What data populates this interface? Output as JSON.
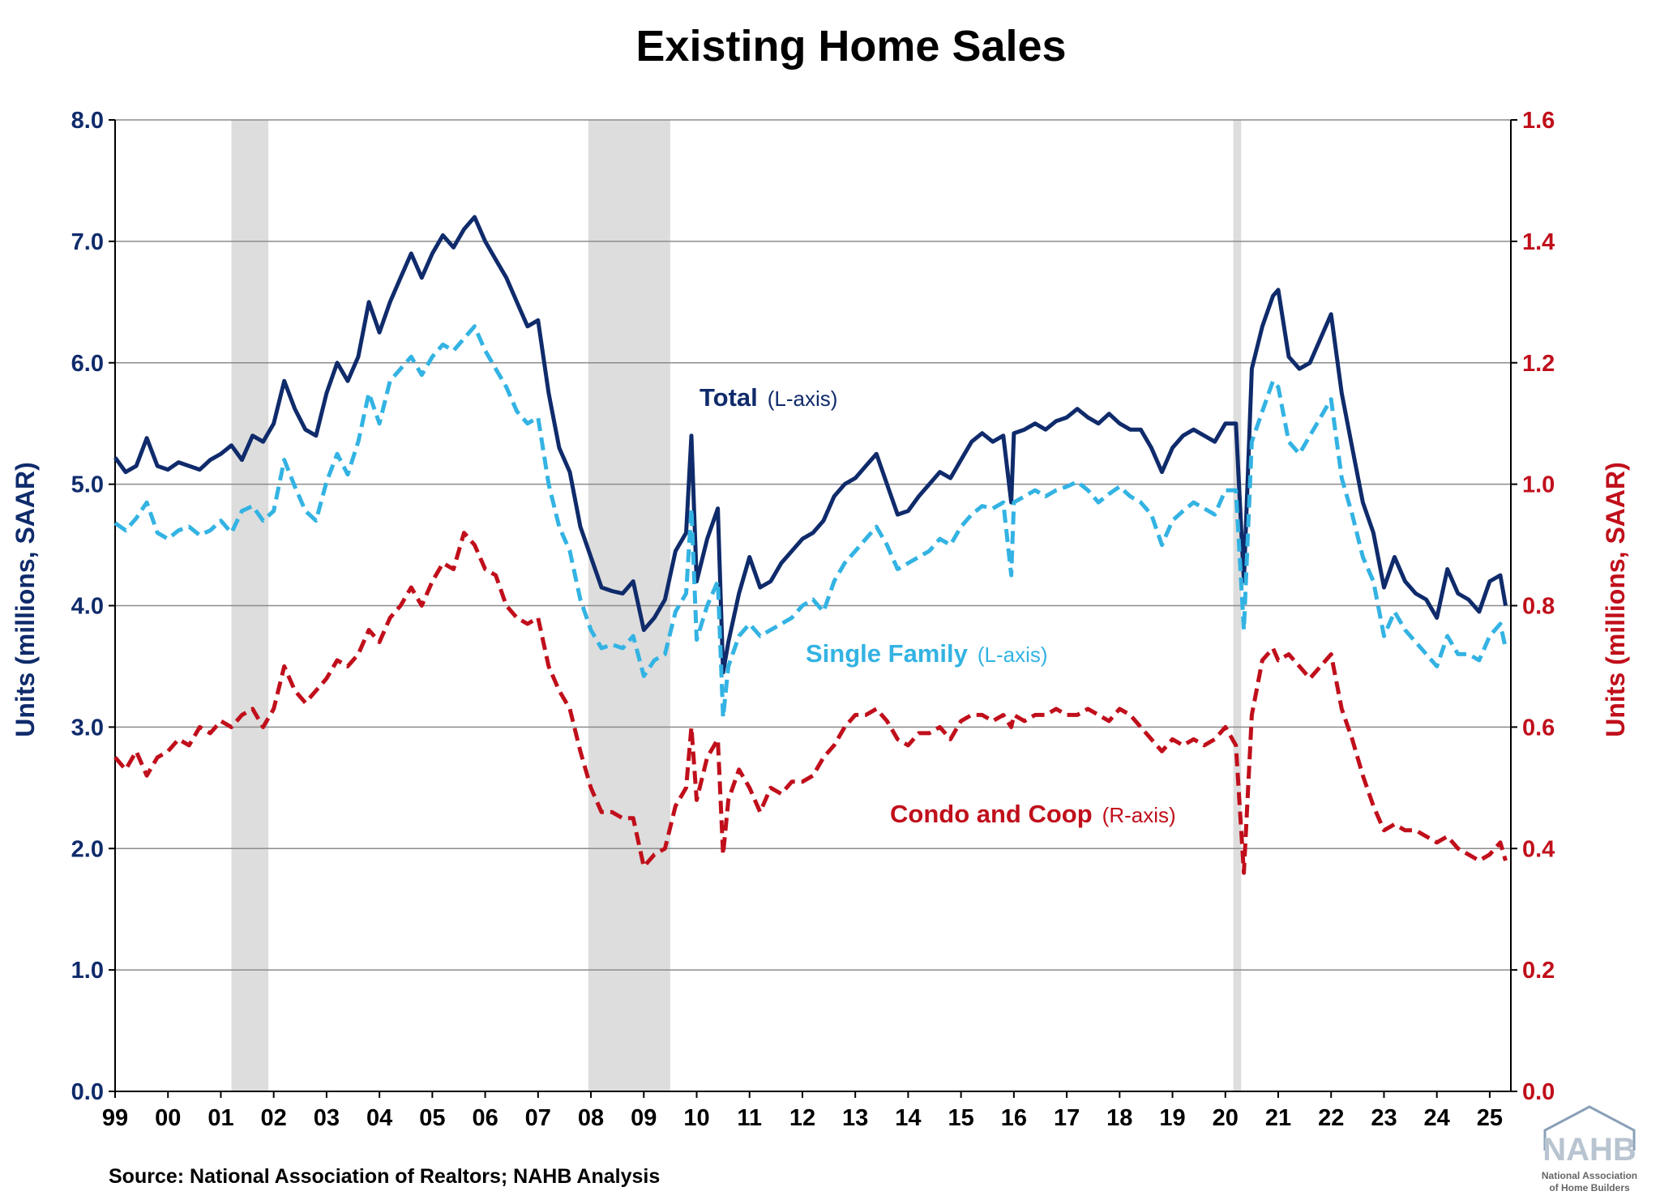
{
  "chart_data": {
    "type": "line",
    "title": "Existing Home Sales",
    "ylabel_left": "Units (millions, SAAR)",
    "ylabel_right": "Units (millions, SAAR)",
    "ylim_left": [
      0,
      8
    ],
    "ylim_right": [
      0,
      1.6
    ],
    "yticks_left": [
      "0.0",
      "1.0",
      "2.0",
      "3.0",
      "4.0",
      "5.0",
      "6.0",
      "7.0",
      "8.0"
    ],
    "yticks_right": [
      "0.0",
      "0.2",
      "0.4",
      "0.6",
      "0.8",
      "1.0",
      "1.2",
      "1.4",
      "1.6"
    ],
    "xlim": [
      1999.0,
      2025.4
    ],
    "xticks": [
      "99",
      "00",
      "01",
      "02",
      "03",
      "04",
      "05",
      "06",
      "07",
      "08",
      "09",
      "10",
      "11",
      "12",
      "13",
      "14",
      "15",
      "16",
      "17",
      "18",
      "19",
      "20",
      "21",
      "22",
      "23",
      "24",
      "25"
    ],
    "grid": "horizontal",
    "recessions": [
      [
        2001.2,
        2001.9
      ],
      [
        2007.95,
        2009.5
      ],
      [
        2020.15,
        2020.3
      ]
    ],
    "colors": {
      "total": "#0f2b6b",
      "single_family": "#33b3e3",
      "condo": "#c00f1b",
      "left_axis": "#0f2b6b",
      "right_axis": "#c00f1b",
      "recession": "#dddddd",
      "grid": "#8c8c8c"
    },
    "series": [
      {
        "name": "Total",
        "axis_note": "(L-axis)",
        "axis": "left",
        "style": "solid",
        "x": [
          1999.0,
          1999.2,
          1999.4,
          1999.6,
          1999.8,
          2000.0,
          2000.2,
          2000.4,
          2000.6,
          2000.8,
          2001.0,
          2001.2,
          2001.4,
          2001.6,
          2001.8,
          2002.0,
          2002.2,
          2002.4,
          2002.6,
          2002.8,
          2003.0,
          2003.2,
          2003.4,
          2003.6,
          2003.8,
          2004.0,
          2004.2,
          2004.4,
          2004.6,
          2004.8,
          2005.0,
          2005.2,
          2005.4,
          2005.6,
          2005.8,
          2006.0,
          2006.2,
          2006.4,
          2006.6,
          2006.8,
          2007.0,
          2007.2,
          2007.4,
          2007.6,
          2007.8,
          2008.0,
          2008.2,
          2008.4,
          2008.6,
          2008.8,
          2009.0,
          2009.2,
          2009.4,
          2009.6,
          2009.8,
          2009.9,
          2010.0,
          2010.2,
          2010.4,
          2010.5,
          2010.6,
          2010.8,
          2011.0,
          2011.2,
          2011.4,
          2011.6,
          2011.8,
          2012.0,
          2012.2,
          2012.4,
          2012.6,
          2012.8,
          2013.0,
          2013.2,
          2013.4,
          2013.6,
          2013.8,
          2014.0,
          2014.2,
          2014.4,
          2014.6,
          2014.8,
          2015.0,
          2015.2,
          2015.4,
          2015.6,
          2015.8,
          2015.95,
          2016.0,
          2016.2,
          2016.4,
          2016.6,
          2016.8,
          2017.0,
          2017.2,
          2017.4,
          2017.6,
          2017.8,
          2018.0,
          2018.2,
          2018.4,
          2018.6,
          2018.8,
          2019.0,
          2019.2,
          2019.4,
          2019.6,
          2019.8,
          2020.0,
          2020.2,
          2020.35,
          2020.5,
          2020.7,
          2020.9,
          2021.0,
          2021.2,
          2021.4,
          2021.6,
          2021.8,
          2022.0,
          2022.2,
          2022.4,
          2022.6,
          2022.8,
          2023.0,
          2023.2,
          2023.4,
          2023.6,
          2023.8,
          2024.0,
          2024.2,
          2024.4,
          2024.6,
          2024.8,
          2025.0,
          2025.2,
          2025.3
        ],
        "values": [
          5.22,
          5.1,
          5.15,
          5.38,
          5.15,
          5.12,
          5.18,
          5.15,
          5.12,
          5.2,
          5.25,
          5.32,
          5.2,
          5.4,
          5.35,
          5.5,
          5.85,
          5.62,
          5.45,
          5.4,
          5.75,
          6.0,
          5.85,
          6.05,
          6.5,
          6.25,
          6.5,
          6.7,
          6.9,
          6.7,
          6.9,
          7.05,
          6.95,
          7.1,
          7.2,
          7.0,
          6.85,
          6.7,
          6.5,
          6.3,
          6.35,
          5.75,
          5.3,
          5.1,
          4.65,
          4.4,
          4.15,
          4.12,
          4.1,
          4.2,
          3.8,
          3.9,
          4.05,
          4.45,
          4.6,
          5.4,
          4.2,
          4.55,
          4.8,
          3.45,
          3.7,
          4.1,
          4.4,
          4.15,
          4.2,
          4.35,
          4.45,
          4.55,
          4.6,
          4.7,
          4.9,
          5.0,
          5.05,
          5.15,
          5.25,
          5.0,
          4.75,
          4.78,
          4.9,
          5.0,
          5.1,
          5.05,
          5.2,
          5.35,
          5.42,
          5.35,
          5.4,
          4.85,
          5.42,
          5.45,
          5.5,
          5.45,
          5.52,
          5.55,
          5.62,
          5.55,
          5.5,
          5.58,
          5.5,
          5.45,
          5.45,
          5.3,
          5.1,
          5.3,
          5.4,
          5.45,
          5.4,
          5.35,
          5.5,
          5.5,
          4.2,
          5.95,
          6.3,
          6.55,
          6.6,
          6.05,
          5.95,
          6.0,
          6.2,
          6.4,
          5.75,
          5.3,
          4.85,
          4.6,
          4.15,
          4.4,
          4.2,
          4.1,
          4.05,
          3.9,
          4.3,
          4.1,
          4.05,
          3.95,
          4.2,
          4.25,
          4.0
        ]
      },
      {
        "name": "Single Family",
        "axis_note": "(L-axis)",
        "axis": "left",
        "style": "dashed",
        "x": [
          1999.0,
          1999.2,
          1999.4,
          1999.6,
          1999.8,
          2000.0,
          2000.2,
          2000.4,
          2000.6,
          2000.8,
          2001.0,
          2001.2,
          2001.4,
          2001.6,
          2001.8,
          2002.0,
          2002.2,
          2002.4,
          2002.6,
          2002.8,
          2003.0,
          2003.2,
          2003.4,
          2003.6,
          2003.8,
          2004.0,
          2004.2,
          2004.4,
          2004.6,
          2004.8,
          2005.0,
          2005.2,
          2005.4,
          2005.6,
          2005.8,
          2006.0,
          2006.2,
          2006.4,
          2006.6,
          2006.8,
          2007.0,
          2007.2,
          2007.4,
          2007.6,
          2007.8,
          2008.0,
          2008.2,
          2008.4,
          2008.6,
          2008.8,
          2009.0,
          2009.2,
          2009.4,
          2009.6,
          2009.8,
          2009.9,
          2010.0,
          2010.2,
          2010.4,
          2010.5,
          2010.6,
          2010.8,
          2011.0,
          2011.2,
          2011.4,
          2011.6,
          2011.8,
          2012.0,
          2012.2,
          2012.4,
          2012.6,
          2012.8,
          2013.0,
          2013.2,
          2013.4,
          2013.6,
          2013.8,
          2014.0,
          2014.2,
          2014.4,
          2014.6,
          2014.8,
          2015.0,
          2015.2,
          2015.4,
          2015.6,
          2015.8,
          2015.95,
          2016.0,
          2016.2,
          2016.4,
          2016.6,
          2016.8,
          2017.0,
          2017.2,
          2017.4,
          2017.6,
          2017.8,
          2018.0,
          2018.2,
          2018.4,
          2018.6,
          2018.8,
          2019.0,
          2019.2,
          2019.4,
          2019.6,
          2019.8,
          2020.0,
          2020.2,
          2020.35,
          2020.5,
          2020.7,
          2020.9,
          2021.0,
          2021.2,
          2021.4,
          2021.6,
          2021.8,
          2022.0,
          2022.2,
          2022.4,
          2022.6,
          2022.8,
          2023.0,
          2023.2,
          2023.4,
          2023.6,
          2023.8,
          2024.0,
          2024.2,
          2024.4,
          2024.6,
          2024.8,
          2025.0,
          2025.2,
          2025.3
        ],
        "values": [
          4.68,
          4.62,
          4.72,
          4.85,
          4.6,
          4.55,
          4.62,
          4.65,
          4.58,
          4.62,
          4.7,
          4.6,
          4.78,
          4.82,
          4.7,
          4.78,
          5.2,
          4.98,
          4.78,
          4.7,
          5.02,
          5.25,
          5.08,
          5.35,
          5.75,
          5.5,
          5.85,
          5.95,
          6.05,
          5.9,
          6.05,
          6.15,
          6.1,
          6.2,
          6.3,
          6.1,
          5.95,
          5.8,
          5.6,
          5.5,
          5.55,
          5.0,
          4.65,
          4.45,
          4.05,
          3.8,
          3.65,
          3.68,
          3.65,
          3.75,
          3.42,
          3.55,
          3.6,
          3.95,
          4.1,
          4.8,
          3.72,
          4.0,
          4.2,
          3.08,
          3.5,
          3.75,
          3.85,
          3.75,
          3.8,
          3.85,
          3.9,
          4.0,
          4.05,
          3.95,
          4.2,
          4.35,
          4.45,
          4.55,
          4.65,
          4.5,
          4.3,
          4.35,
          4.4,
          4.45,
          4.55,
          4.5,
          4.65,
          4.75,
          4.82,
          4.8,
          4.85,
          4.25,
          4.85,
          4.9,
          4.95,
          4.9,
          4.95,
          4.98,
          5.02,
          4.95,
          4.85,
          4.92,
          4.98,
          4.9,
          4.85,
          4.75,
          4.5,
          4.7,
          4.78,
          4.85,
          4.8,
          4.75,
          4.95,
          4.95,
          3.8,
          5.35,
          5.6,
          5.85,
          5.8,
          5.35,
          5.25,
          5.4,
          5.55,
          5.7,
          5.05,
          4.75,
          4.4,
          4.2,
          3.75,
          3.95,
          3.8,
          3.7,
          3.6,
          3.5,
          3.75,
          3.6,
          3.6,
          3.55,
          3.75,
          3.85,
          3.65
        ]
      },
      {
        "name": "Condo and Coop",
        "axis_note": "(R-axis)",
        "axis": "right",
        "style": "dashed",
        "x": [
          1999.0,
          1999.2,
          1999.4,
          1999.6,
          1999.8,
          2000.0,
          2000.2,
          2000.4,
          2000.6,
          2000.8,
          2001.0,
          2001.2,
          2001.4,
          2001.6,
          2001.8,
          2002.0,
          2002.2,
          2002.4,
          2002.6,
          2002.8,
          2003.0,
          2003.2,
          2003.4,
          2003.6,
          2003.8,
          2004.0,
          2004.2,
          2004.4,
          2004.6,
          2004.8,
          2005.0,
          2005.2,
          2005.4,
          2005.6,
          2005.8,
          2006.0,
          2006.2,
          2006.4,
          2006.6,
          2006.8,
          2007.0,
          2007.2,
          2007.4,
          2007.6,
          2007.8,
          2008.0,
          2008.2,
          2008.4,
          2008.6,
          2008.8,
          2009.0,
          2009.2,
          2009.4,
          2009.6,
          2009.8,
          2009.9,
          2010.0,
          2010.2,
          2010.4,
          2010.5,
          2010.6,
          2010.8,
          2011.0,
          2011.2,
          2011.4,
          2011.6,
          2011.8,
          2012.0,
          2012.2,
          2012.4,
          2012.6,
          2012.8,
          2013.0,
          2013.2,
          2013.4,
          2013.6,
          2013.8,
          2014.0,
          2014.2,
          2014.4,
          2014.6,
          2014.8,
          2015.0,
          2015.2,
          2015.4,
          2015.6,
          2015.8,
          2015.95,
          2016.0,
          2016.2,
          2016.4,
          2016.6,
          2016.8,
          2017.0,
          2017.2,
          2017.4,
          2017.6,
          2017.8,
          2018.0,
          2018.2,
          2018.4,
          2018.6,
          2018.8,
          2019.0,
          2019.2,
          2019.4,
          2019.6,
          2019.8,
          2020.0,
          2020.2,
          2020.35,
          2020.5,
          2020.7,
          2020.9,
          2021.0,
          2021.2,
          2021.4,
          2021.6,
          2021.8,
          2022.0,
          2022.2,
          2022.4,
          2022.6,
          2022.8,
          2023.0,
          2023.2,
          2023.4,
          2023.6,
          2023.8,
          2024.0,
          2024.2,
          2024.4,
          2024.6,
          2024.8,
          2025.0,
          2025.2,
          2025.3
        ],
        "values": [
          0.55,
          0.53,
          0.56,
          0.52,
          0.55,
          0.56,
          0.58,
          0.57,
          0.6,
          0.59,
          0.61,
          0.6,
          0.62,
          0.63,
          0.6,
          0.63,
          0.7,
          0.66,
          0.64,
          0.66,
          0.68,
          0.71,
          0.7,
          0.72,
          0.76,
          0.74,
          0.78,
          0.8,
          0.83,
          0.8,
          0.84,
          0.87,
          0.86,
          0.92,
          0.9,
          0.86,
          0.85,
          0.8,
          0.78,
          0.77,
          0.78,
          0.7,
          0.66,
          0.63,
          0.56,
          0.5,
          0.46,
          0.46,
          0.45,
          0.45,
          0.37,
          0.39,
          0.4,
          0.47,
          0.5,
          0.6,
          0.48,
          0.55,
          0.58,
          0.39,
          0.48,
          0.53,
          0.5,
          0.46,
          0.5,
          0.49,
          0.51,
          0.51,
          0.52,
          0.55,
          0.57,
          0.6,
          0.62,
          0.62,
          0.63,
          0.61,
          0.58,
          0.57,
          0.59,
          0.59,
          0.6,
          0.58,
          0.61,
          0.62,
          0.62,
          0.61,
          0.62,
          0.6,
          0.62,
          0.61,
          0.62,
          0.62,
          0.63,
          0.62,
          0.62,
          0.63,
          0.62,
          0.61,
          0.63,
          0.62,
          0.6,
          0.58,
          0.56,
          0.58,
          0.57,
          0.58,
          0.57,
          0.58,
          0.6,
          0.57,
          0.36,
          0.62,
          0.71,
          0.73,
          0.71,
          0.72,
          0.7,
          0.68,
          0.7,
          0.72,
          0.63,
          0.58,
          0.52,
          0.47,
          0.43,
          0.44,
          0.43,
          0.43,
          0.42,
          0.41,
          0.42,
          0.4,
          0.39,
          0.38,
          0.39,
          0.41,
          0.38
        ]
      }
    ]
  },
  "source": "Source: National Association of Realtors; NAHB Analysis",
  "logo": {
    "name": "NAHB",
    "line1": "National Association",
    "line2": "of Home Builders"
  }
}
